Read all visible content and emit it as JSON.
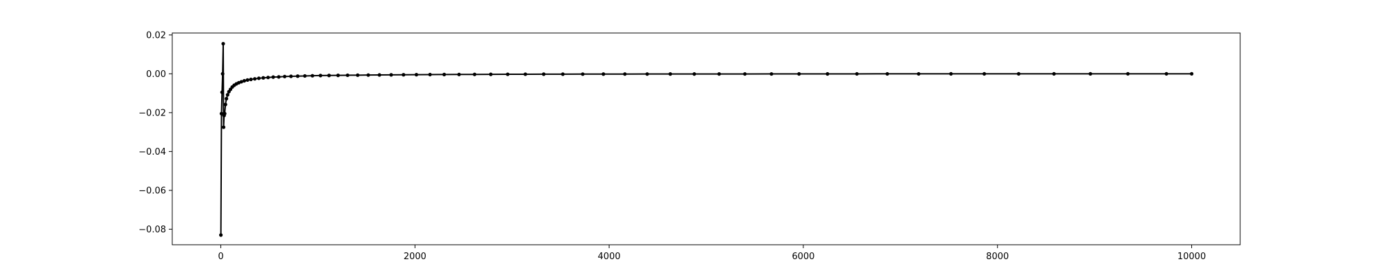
{
  "chart_data": {
    "type": "line",
    "title": "",
    "xlabel": "",
    "ylabel": "",
    "xlim": [
      -500,
      10500
    ],
    "ylim": [
      -0.088,
      0.021
    ],
    "grid": false,
    "legend": "none",
    "colors": {
      "line": "#000000",
      "marker": "#000000",
      "axes": "#000000",
      "background": "#ffffff"
    },
    "x_ticks": [
      {
        "value": 0,
        "label": "0"
      },
      {
        "value": 2000,
        "label": "2000"
      },
      {
        "value": 4000,
        "label": "4000"
      },
      {
        "value": 6000,
        "label": "6000"
      },
      {
        "value": 8000,
        "label": "8000"
      },
      {
        "value": 10000,
        "label": "10000"
      }
    ],
    "y_ticks": [
      {
        "value": 0.02,
        "label": "0.02"
      },
      {
        "value": 0.0,
        "label": "0.00"
      },
      {
        "value": -0.02,
        "label": "−0.02"
      },
      {
        "value": -0.04,
        "label": "−0.04"
      },
      {
        "value": -0.06,
        "label": "−0.06"
      },
      {
        "value": -0.08,
        "label": "−0.08"
      }
    ],
    "series": [
      {
        "color": "#000000",
        "marker": "circle",
        "x": [
          1,
          7,
          13,
          19,
          25,
          29,
          34,
          40,
          48,
          58,
          70,
          84,
          100,
          118,
          138,
          160,
          185,
          212,
          242,
          275,
          310,
          350,
          392,
          438,
          487,
          540,
          597,
          658,
          723,
          792,
          866,
          944,
          1027,
          1115,
          1208,
          1306,
          1410,
          1519,
          1634,
          1755,
          1882,
          2015,
          2155,
          2301,
          2454,
          2614,
          2781,
          2955,
          3137,
          3326,
          3523,
          3728,
          3941,
          4162,
          4392,
          4630,
          4877,
          5133,
          5398,
          5672,
          5956,
          6249,
          6552,
          6865,
          7188,
          7521,
          7864,
          8218,
          8582,
          8957,
          9343,
          9740,
          10000
        ],
        "y": [
          -0.083,
          -0.0205,
          -0.0095,
          0.0,
          0.0155,
          -0.0275,
          -0.0215,
          -0.0205,
          -0.0158,
          -0.0128,
          -0.0108,
          -0.0092,
          -0.008,
          -0.0068,
          -0.0059,
          -0.0052,
          -0.0046,
          -0.0041,
          -0.0036,
          -0.0032,
          -0.0029,
          -0.0026,
          -0.0023,
          -0.0021,
          -0.0019,
          -0.0017,
          -0.0016,
          -0.0014,
          -0.0013,
          -0.0012,
          -0.0011,
          -0.001,
          -0.0009,
          -0.00085,
          -0.0008,
          -0.00075,
          -0.0007,
          -0.00065,
          -0.0006,
          -0.00055,
          -0.0005,
          -0.00045,
          -0.0004,
          -0.00037,
          -0.00034,
          -0.00031,
          -0.00028,
          -0.00025,
          -0.00022,
          -0.0002,
          -0.00018,
          -0.00016,
          -0.00014,
          -0.00013,
          -0.00012,
          -0.00011,
          -0.0001,
          -9e-05,
          -8e-05,
          -7e-05,
          -6e-05,
          -5e-05,
          -4e-05,
          -3e-05,
          -3e-05,
          -2e-05,
          -2e-05,
          -1e-05,
          -1e-05,
          -1e-05,
          0.0,
          0.0,
          0.0
        ]
      }
    ]
  }
}
